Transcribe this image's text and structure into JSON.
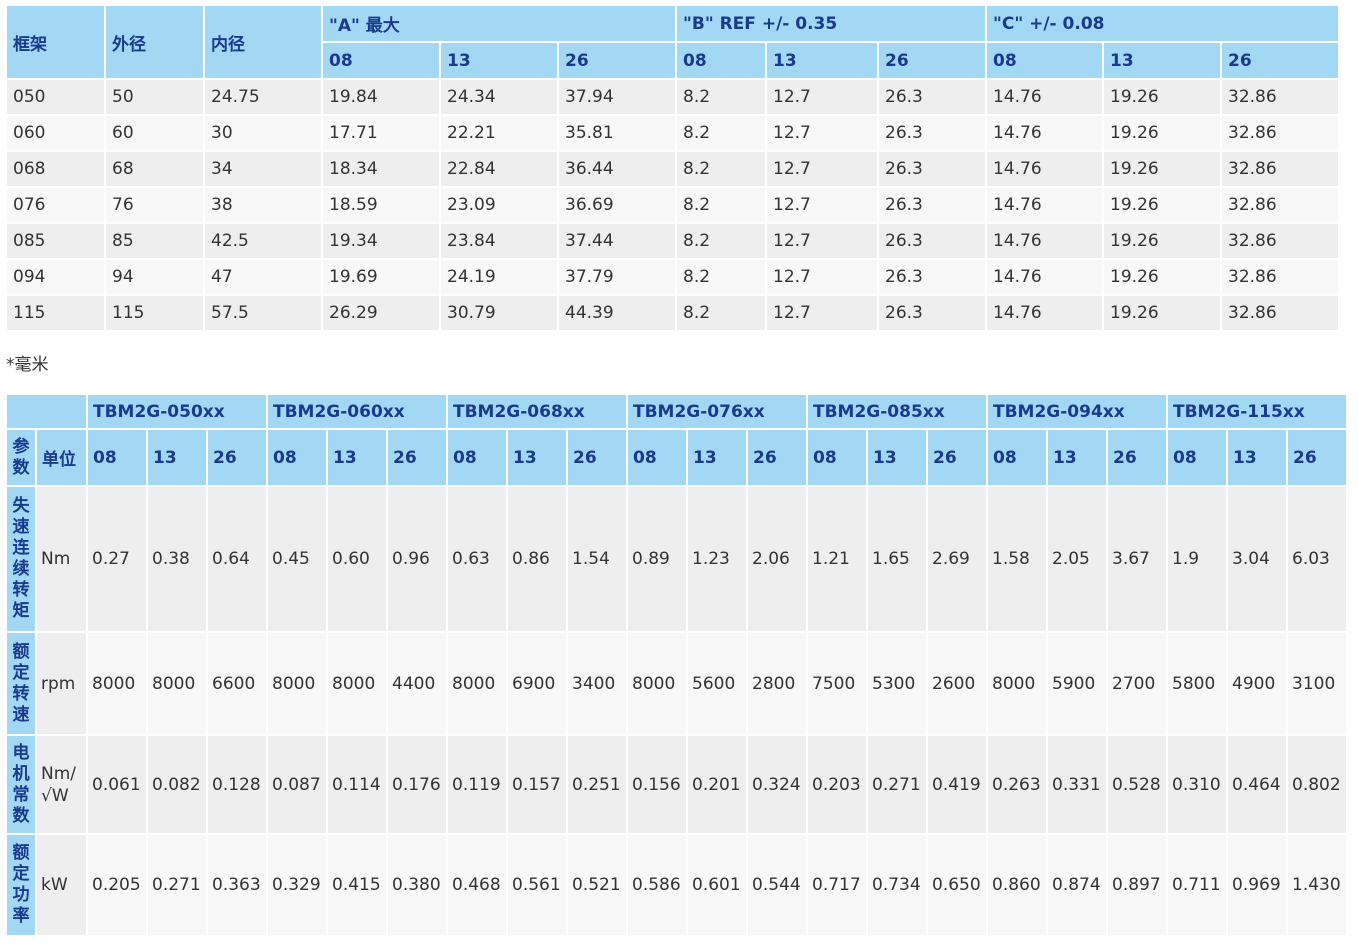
{
  "table1": {
    "headers": {
      "frame": "框架",
      "od": "外径",
      "id": "内径",
      "groupA": "\"A\" 最大",
      "groupB": "\"B\" REF +/- 0.35",
      "groupC": "\"C\" +/- 0.08",
      "subs": [
        "08",
        "13",
        "26",
        "08",
        "13",
        "26",
        "08",
        "13",
        "26"
      ]
    },
    "rows": [
      [
        "050",
        "50",
        "24.75",
        "19.84",
        "24.34",
        "37.94",
        "8.2",
        "12.7",
        "26.3",
        "14.76",
        "19.26",
        "32.86"
      ],
      [
        "060",
        "60",
        "30",
        "17.71",
        "22.21",
        "35.81",
        "8.2",
        "12.7",
        "26.3",
        "14.76",
        "19.26",
        "32.86"
      ],
      [
        "068",
        "68",
        "34",
        "18.34",
        "22.84",
        "36.44",
        "8.2",
        "12.7",
        "26.3",
        "14.76",
        "19.26",
        "32.86"
      ],
      [
        "076",
        "76",
        "38",
        "18.59",
        "23.09",
        "36.69",
        "8.2",
        "12.7",
        "26.3",
        "14.76",
        "19.26",
        "32.86"
      ],
      [
        "085",
        "85",
        "42.5",
        "19.34",
        "23.84",
        "37.44",
        "8.2",
        "12.7",
        "26.3",
        "14.76",
        "19.26",
        "32.86"
      ],
      [
        "094",
        "94",
        "47",
        "19.69",
        "24.19",
        "37.79",
        "8.2",
        "12.7",
        "26.3",
        "14.76",
        "19.26",
        "32.86"
      ],
      [
        "115",
        "115",
        "57.5",
        "26.29",
        "30.79",
        "44.39",
        "8.2",
        "12.7",
        "26.3",
        "14.76",
        "19.26",
        "32.86"
      ]
    ]
  },
  "note": "*毫米",
  "table2": {
    "groups": [
      "TBM2G-050xx",
      "TBM2G-060xx",
      "TBM2G-068xx",
      "TBM2G-076xx",
      "TBM2G-085xx",
      "TBM2G-094xx",
      "TBM2G-115xx"
    ],
    "param_label": "参数",
    "unit_label": "单位",
    "subs": [
      "08",
      "13",
      "26"
    ],
    "rows": [
      {
        "label": "失速连续转矩",
        "unit": "Nm",
        "values": [
          "0.27",
          "0.38",
          "0.64",
          "0.45",
          "0.60",
          "0.96",
          "0.63",
          "0.86",
          "1.54",
          "0.89",
          "1.23",
          "2.06",
          "1.21",
          "1.65",
          "2.69",
          "1.58",
          "2.05",
          "3.67",
          "1.9",
          "3.04",
          "6.03"
        ]
      },
      {
        "label": "额定转速",
        "unit": "rpm",
        "values": [
          "8000",
          "8000",
          "6600",
          "8000",
          "8000",
          "4400",
          "8000",
          "6900",
          "3400",
          "8000",
          "5600",
          "2800",
          "7500",
          "5300",
          "2600",
          "8000",
          "5900",
          "2700",
          "5800",
          "4900",
          "3100"
        ]
      },
      {
        "label": "电机常数",
        "unit": "Nm/√W",
        "values": [
          "0.061",
          "0.082",
          "0.128",
          "0.087",
          "0.114",
          "0.176",
          "0.119",
          "0.157",
          "0.251",
          "0.156",
          "0.201",
          "0.324",
          "0.203",
          "0.271",
          "0.419",
          "0.263",
          "0.331",
          "0.528",
          "0.310",
          "0.464",
          "0.802"
        ]
      },
      {
        "label": "额定功率",
        "unit": "kW",
        "values": [
          "0.205",
          "0.271",
          "0.363",
          "0.329",
          "0.415",
          "0.380",
          "0.468",
          "0.561",
          "0.521",
          "0.586",
          "0.601",
          "0.544",
          "0.717",
          "0.734",
          "0.650",
          "0.860",
          "0.874",
          "0.897",
          "0.711",
          "0.969",
          "1.430"
        ]
      }
    ]
  }
}
